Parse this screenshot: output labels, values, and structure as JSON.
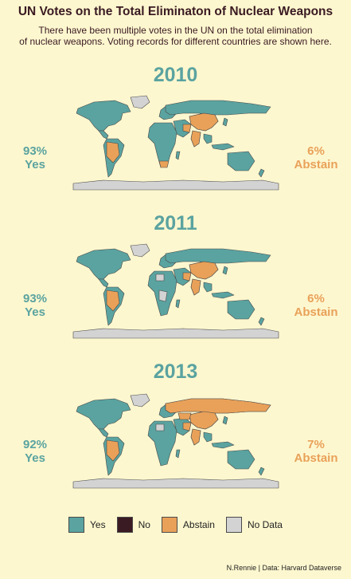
{
  "title": "UN Votes on the Total Eliminaton of Nuclear Weapons",
  "subtitle_line1": "There have been multiple votes in the UN on the total elimination",
  "subtitle_line2": "of nuclear weapons. Voting records for different countries are shown here.",
  "colors": {
    "yes": "#5aa3a0",
    "no": "#3b1b23",
    "abstain": "#e9a159",
    "no_data": "#d3d3d3",
    "background": "#fdf7cf"
  },
  "panels": [
    {
      "year": "2010",
      "yes_pct": "93%",
      "yes_label": "Yes",
      "abstain_pct": "6%",
      "abstain_label": "Abstain"
    },
    {
      "year": "2011",
      "yes_pct": "93%",
      "yes_label": "Yes",
      "abstain_pct": "6%",
      "abstain_label": "Abstain"
    },
    {
      "year": "2013",
      "yes_pct": "92%",
      "yes_label": "Yes",
      "abstain_pct": "7%",
      "abstain_label": "Abstain"
    }
  ],
  "legend": [
    {
      "label": "Yes",
      "color": "#5aa3a0"
    },
    {
      "label": "No",
      "color": "#3b1b23"
    },
    {
      "label": "Abstain",
      "color": "#e9a159"
    },
    {
      "label": "No Data",
      "color": "#d3d3d3"
    }
  ],
  "caption": "N.Rennie | Data: Harvard Dataverse",
  "chart_data": [
    {
      "type": "choropleth map",
      "title": "2010",
      "categories": [
        "Yes",
        "No",
        "Abstain",
        "No Data"
      ],
      "shares": {
        "Yes": 93,
        "Abstain": 6
      },
      "abstain_regions": [
        "Brazil",
        "India",
        "China",
        "Pakistan",
        "South Africa",
        "Iran"
      ],
      "no_data_regions": [
        "Antarctica",
        "Greenland"
      ]
    },
    {
      "type": "choropleth map",
      "title": "2011",
      "categories": [
        "Yes",
        "No",
        "Abstain",
        "No Data"
      ],
      "shares": {
        "Yes": 93,
        "Abstain": 6
      },
      "abstain_regions": [
        "Brazil",
        "India",
        "China",
        "Pakistan",
        "Iran"
      ],
      "no_data_regions": [
        "Antarctica",
        "Greenland",
        "Libya",
        "Democratic Republic of the Congo"
      ]
    },
    {
      "type": "choropleth map",
      "title": "2013",
      "categories": [
        "Yes",
        "No",
        "Abstain",
        "No Data"
      ],
      "shares": {
        "Yes": 92,
        "Abstain": 7
      },
      "abstain_regions": [
        "Russia",
        "China",
        "India",
        "Pakistan",
        "Brazil",
        "Iran",
        "Ukraine",
        "Kazakhstan"
      ],
      "no_data_regions": [
        "Antarctica",
        "Greenland",
        "Libya"
      ]
    }
  ]
}
